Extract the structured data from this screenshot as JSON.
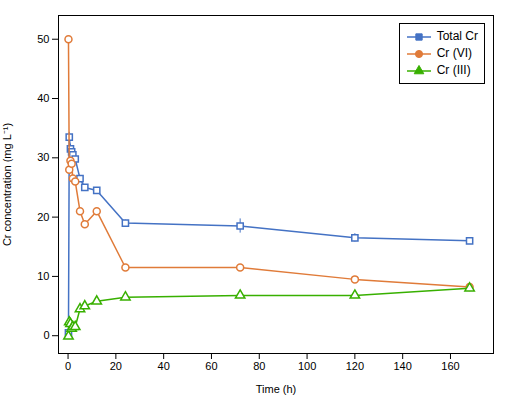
{
  "chart_data": {
    "type": "line",
    "xlabel": "Time (h)",
    "ylabel": "Cr concentration (mg L⁻¹)",
    "x": [
      0.17,
      0.5,
      1.0,
      1.5,
      2.0,
      3.0,
      5.0,
      7.0,
      12.0,
      24.0,
      72.0,
      120.0,
      168.0
    ],
    "series": [
      {
        "name": "Total Cr",
        "color": "#4472c4",
        "marker": "square",
        "values": [
          0.5,
          33.5,
          31.5,
          31.0,
          30.5,
          29.8,
          26.5,
          25.0,
          24.5,
          19.0,
          18.5,
          16.5,
          16.0
        ],
        "errors": [
          0.3,
          0.8,
          0.8,
          0.6,
          0.6,
          0.6,
          0.5,
          0.5,
          0.5,
          0.5,
          1.2,
          0.7,
          0.5
        ]
      },
      {
        "name": "Cr (VI)",
        "color": "#e07b39",
        "marker": "circle",
        "values": [
          50.0,
          28.0,
          29.5,
          29.0,
          26.5,
          26.0,
          21.0,
          18.8,
          21.0,
          11.5,
          11.5,
          9.5,
          8.2
        ],
        "errors": [
          0.2,
          0.5,
          0.5,
          0.5,
          0.5,
          0.5,
          0.5,
          0.5,
          0.5,
          0.5,
          0.5,
          0.5,
          0.5
        ]
      },
      {
        "name": "Cr (III)",
        "color": "#38b000",
        "marker": "triangle",
        "values": [
          -0.1,
          2.3,
          2.0,
          1.2,
          1.5,
          1.5,
          4.5,
          5.0,
          5.8,
          6.5,
          6.8,
          6.8,
          8.0
        ],
        "errors": [
          0.1,
          0.2,
          0.2,
          0.2,
          0.2,
          0.2,
          0.3,
          0.3,
          0.3,
          0.3,
          0.4,
          0.4,
          0.4
        ]
      }
    ],
    "xlim": [
      -4,
      178
    ],
    "ylim": [
      -3,
      54
    ],
    "xticks": [
      0,
      20,
      40,
      60,
      80,
      100,
      120,
      140,
      160
    ],
    "yticks": [
      0,
      10,
      20,
      30,
      40,
      50
    ],
    "grid": false,
    "legend": "upper right"
  }
}
